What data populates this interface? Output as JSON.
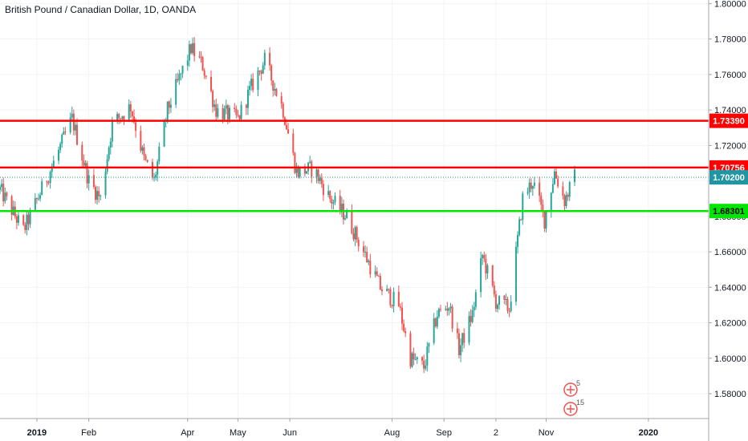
{
  "header": {
    "title": "British Pound / Canadian Dollar, 1D, OANDA"
  },
  "colors": {
    "up": "#26a69a",
    "down": "#ef5350",
    "resistance": "#ff0000",
    "support": "#00e600",
    "current": "#2196a3",
    "grid": "#f0f3fa",
    "axis": "#a0a4ad",
    "text": "#131722"
  },
  "chart_data": {
    "type": "candlestick",
    "title": "British Pound / Canadian Dollar, 1D, OANDA",
    "xlabel": "",
    "ylabel": "",
    "ylim": [
      1.566,
      1.802
    ],
    "y_ticks": [
      "1.58000",
      "1.60000",
      "1.62000",
      "1.64000",
      "1.66000",
      "1.68000",
      "1.70000",
      "1.72000",
      "1.74000",
      "1.76000",
      "1.78000",
      "1.80000"
    ],
    "y_tick_values": [
      1.58,
      1.6,
      1.62,
      1.64,
      1.66,
      1.68,
      1.7,
      1.72,
      1.74,
      1.76,
      1.78,
      1.8
    ],
    "x_ticks": [
      {
        "label": "2019",
        "date": "2019-01-01"
      },
      {
        "label": "Feb",
        "date": "2019-02-01"
      },
      {
        "label": "Apr",
        "date": "2019-04-01"
      },
      {
        "label": "May",
        "date": "2019-05-01"
      },
      {
        "label": "Jun",
        "date": "2019-06-01"
      },
      {
        "label": "Aug",
        "date": "2019-08-01"
      },
      {
        "label": "Sep",
        "date": "2019-09-01"
      },
      {
        "label": "2",
        "date": "2019-10-02"
      },
      {
        "label": "Nov",
        "date": "2019-11-01"
      },
      {
        "label": "2020",
        "date": "2020-01-01"
      }
    ],
    "x_range": [
      "2018-12-10",
      "2020-02-06"
    ],
    "grid": true,
    "horizontal_lines": [
      {
        "value": 1.7339,
        "label": "1.73390",
        "kind": "resistance"
      },
      {
        "value": 1.70756,
        "label": "1.70756",
        "kind": "resistance"
      },
      {
        "value": 1.68301,
        "label": "1.68301",
        "kind": "support"
      }
    ],
    "current_price": {
      "value": 1.702,
      "label": "1.70200"
    },
    "events": [
      {
        "date": "2019-11-06",
        "count": "5"
      },
      {
        "date": "2019-11-06",
        "count": "15"
      }
    ],
    "anchors": [
      {
        "date": "2018-12-10",
        "price": 1.695
      },
      {
        "date": "2018-12-24",
        "price": 1.672
      },
      {
        "date": "2019-01-10",
        "price": 1.708
      },
      {
        "date": "2019-01-22",
        "price": 1.735
      },
      {
        "date": "2019-02-01",
        "price": 1.7
      },
      {
        "date": "2019-02-08",
        "price": 1.69
      },
      {
        "date": "2019-02-15",
        "price": 1.732
      },
      {
        "date": "2019-02-26",
        "price": 1.742
      },
      {
        "date": "2019-03-06",
        "price": 1.712
      },
      {
        "date": "2019-03-12",
        "price": 1.7
      },
      {
        "date": "2019-03-20",
        "price": 1.74
      },
      {
        "date": "2019-04-03",
        "price": 1.775
      },
      {
        "date": "2019-04-10",
        "price": 1.765
      },
      {
        "date": "2019-04-18",
        "price": 1.74
      },
      {
        "date": "2019-05-01",
        "price": 1.735
      },
      {
        "date": "2019-05-10",
        "price": 1.755
      },
      {
        "date": "2019-05-17",
        "price": 1.768
      },
      {
        "date": "2019-05-28",
        "price": 1.74
      },
      {
        "date": "2019-06-05",
        "price": 1.705
      },
      {
        "date": "2019-06-15",
        "price": 1.707
      },
      {
        "date": "2019-06-25",
        "price": 1.69
      },
      {
        "date": "2019-07-05",
        "price": 1.68
      },
      {
        "date": "2019-07-15",
        "price": 1.66
      },
      {
        "date": "2019-07-25",
        "price": 1.64
      },
      {
        "date": "2019-08-05",
        "price": 1.63
      },
      {
        "date": "2019-08-12",
        "price": 1.6
      },
      {
        "date": "2019-08-20",
        "price": 1.595
      },
      {
        "date": "2019-08-28",
        "price": 1.625
      },
      {
        "date": "2019-09-04",
        "price": 1.63
      },
      {
        "date": "2019-09-10",
        "price": 1.605
      },
      {
        "date": "2019-09-18",
        "price": 1.625
      },
      {
        "date": "2019-09-24",
        "price": 1.658
      },
      {
        "date": "2019-10-02",
        "price": 1.632
      },
      {
        "date": "2019-10-10",
        "price": 1.628
      },
      {
        "date": "2019-10-18",
        "price": 1.69
      },
      {
        "date": "2019-10-24",
        "price": 1.7
      },
      {
        "date": "2019-10-31",
        "price": 1.678
      },
      {
        "date": "2019-11-06",
        "price": 1.705
      },
      {
        "date": "2019-11-12",
        "price": 1.689
      },
      {
        "date": "2019-11-18",
        "price": 1.702
      }
    ]
  }
}
